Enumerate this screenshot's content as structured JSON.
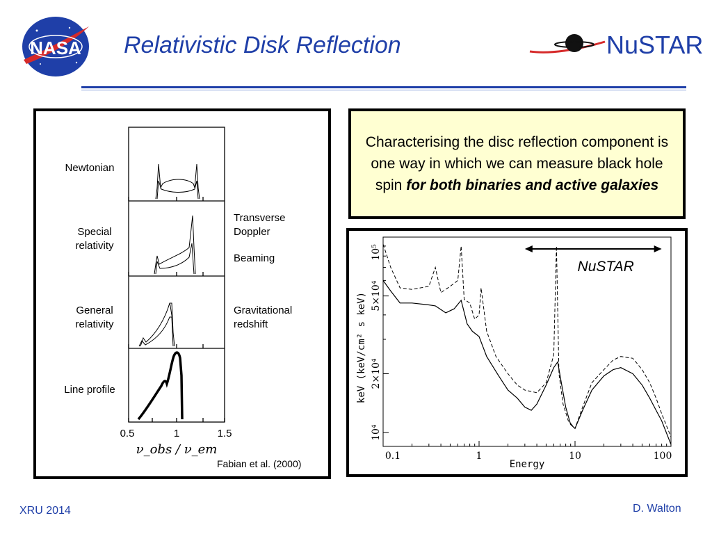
{
  "title": "Relativistic Disk Reflection",
  "logos": {
    "nasa": "NASA",
    "nustar": "NuSTAR"
  },
  "colors": {
    "title": "#1f3fa8",
    "caption_bg": "#ffffd2",
    "footer": "#1f3fa8"
  },
  "left_figure": {
    "row_labels": [
      "Newtonian",
      "Special relativity",
      "General relativity",
      "Line profile"
    ],
    "row_labels_lines": [
      [
        "Newtonian"
      ],
      [
        "Special",
        "relativity"
      ],
      [
        "General",
        "relativity"
      ],
      [
        "Line profile"
      ]
    ],
    "effects": [
      "Transverse Doppler",
      "Beaming",
      "Gravitational redshift"
    ],
    "effects_lines": [
      [
        "Transverse",
        "Doppler"
      ],
      [
        "Beaming"
      ],
      [
        "Gravitational",
        "redshift"
      ]
    ],
    "x_ticks": [
      "0.5",
      "1",
      "1.5"
    ],
    "x_axis_label": "ν_obs / ν_em",
    "credit": "Fabian et al. (2000)"
  },
  "caption": {
    "plain": "Characterising the disc reflection component is one way in which we can measure black hole spin",
    "emphasis": "for both binaries and active galaxies"
  },
  "chart_data": {
    "type": "line",
    "xlabel": "Energy",
    "ylabel": "keV (keV/cm² s keV)",
    "x_scale": "log",
    "y_scale": "log",
    "xlim": [
      0.1,
      100
    ],
    "ylim": [
      8500,
      100000
    ],
    "x_tick_labels": [
      "0.1",
      "1",
      "10",
      "100"
    ],
    "y_tick_labels": [
      "10⁴",
      "2×10⁴",
      "5×10⁴",
      "10⁵"
    ],
    "annotation": "NuSTAR",
    "annotation_range": [
      3,
      80
    ],
    "series": [
      {
        "style": "solid",
        "x": [
          0.1,
          0.12,
          0.15,
          0.2,
          0.3,
          0.35,
          0.45,
          0.55,
          0.65,
          0.75,
          0.85,
          1.0,
          1.2,
          1.6,
          2.0,
          2.5,
          3.0,
          3.5,
          4.0,
          5.0,
          6.0,
          6.6,
          7.2,
          8.0,
          9.0,
          10.0,
          12.0,
          15.0,
          20.0,
          25.0,
          30.0,
          40.0,
          50.0,
          60.0,
          70.0,
          80.0,
          100.0
        ],
        "y": [
          60000,
          53000,
          46000,
          46000,
          45000,
          44500,
          41000,
          43000,
          47500,
          36000,
          33000,
          31000,
          24500,
          19500,
          16500,
          15000,
          13500,
          13000,
          14000,
          17500,
          21500,
          23000,
          18000,
          13500,
          11000,
          10500,
          13000,
          16500,
          19500,
          21000,
          21500,
          20000,
          17500,
          15000,
          13000,
          11500,
          8700
        ]
      },
      {
        "style": "dashed",
        "x": [
          0.1,
          0.12,
          0.15,
          0.2,
          0.3,
          0.35,
          0.4,
          0.5,
          0.6,
          0.65,
          0.7,
          0.8,
          0.9,
          1.0,
          1.05,
          1.2,
          1.5,
          2.0,
          2.5,
          3.0,
          4.0,
          5.0,
          6.0,
          6.4,
          6.8,
          7.5,
          8.5,
          10.0,
          12.0,
          15.0,
          20.0,
          25.0,
          30.0,
          40.0,
          50.0,
          60.0,
          70.0,
          80.0,
          100.0
        ],
        "y": [
          92000,
          70000,
          55000,
          54000,
          56000,
          70000,
          52000,
          56000,
          60000,
          90000,
          48000,
          46000,
          38000,
          40000,
          55000,
          33000,
          24500,
          20000,
          17500,
          16500,
          16000,
          18000,
          25000,
          90000,
          20000,
          14000,
          11500,
          10500,
          13500,
          18000,
          21000,
          23500,
          24500,
          24000,
          21000,
          18000,
          15000,
          12500,
          9500
        ]
      }
    ]
  },
  "footer": {
    "left": "XRU 2014",
    "right": "D. Walton"
  }
}
